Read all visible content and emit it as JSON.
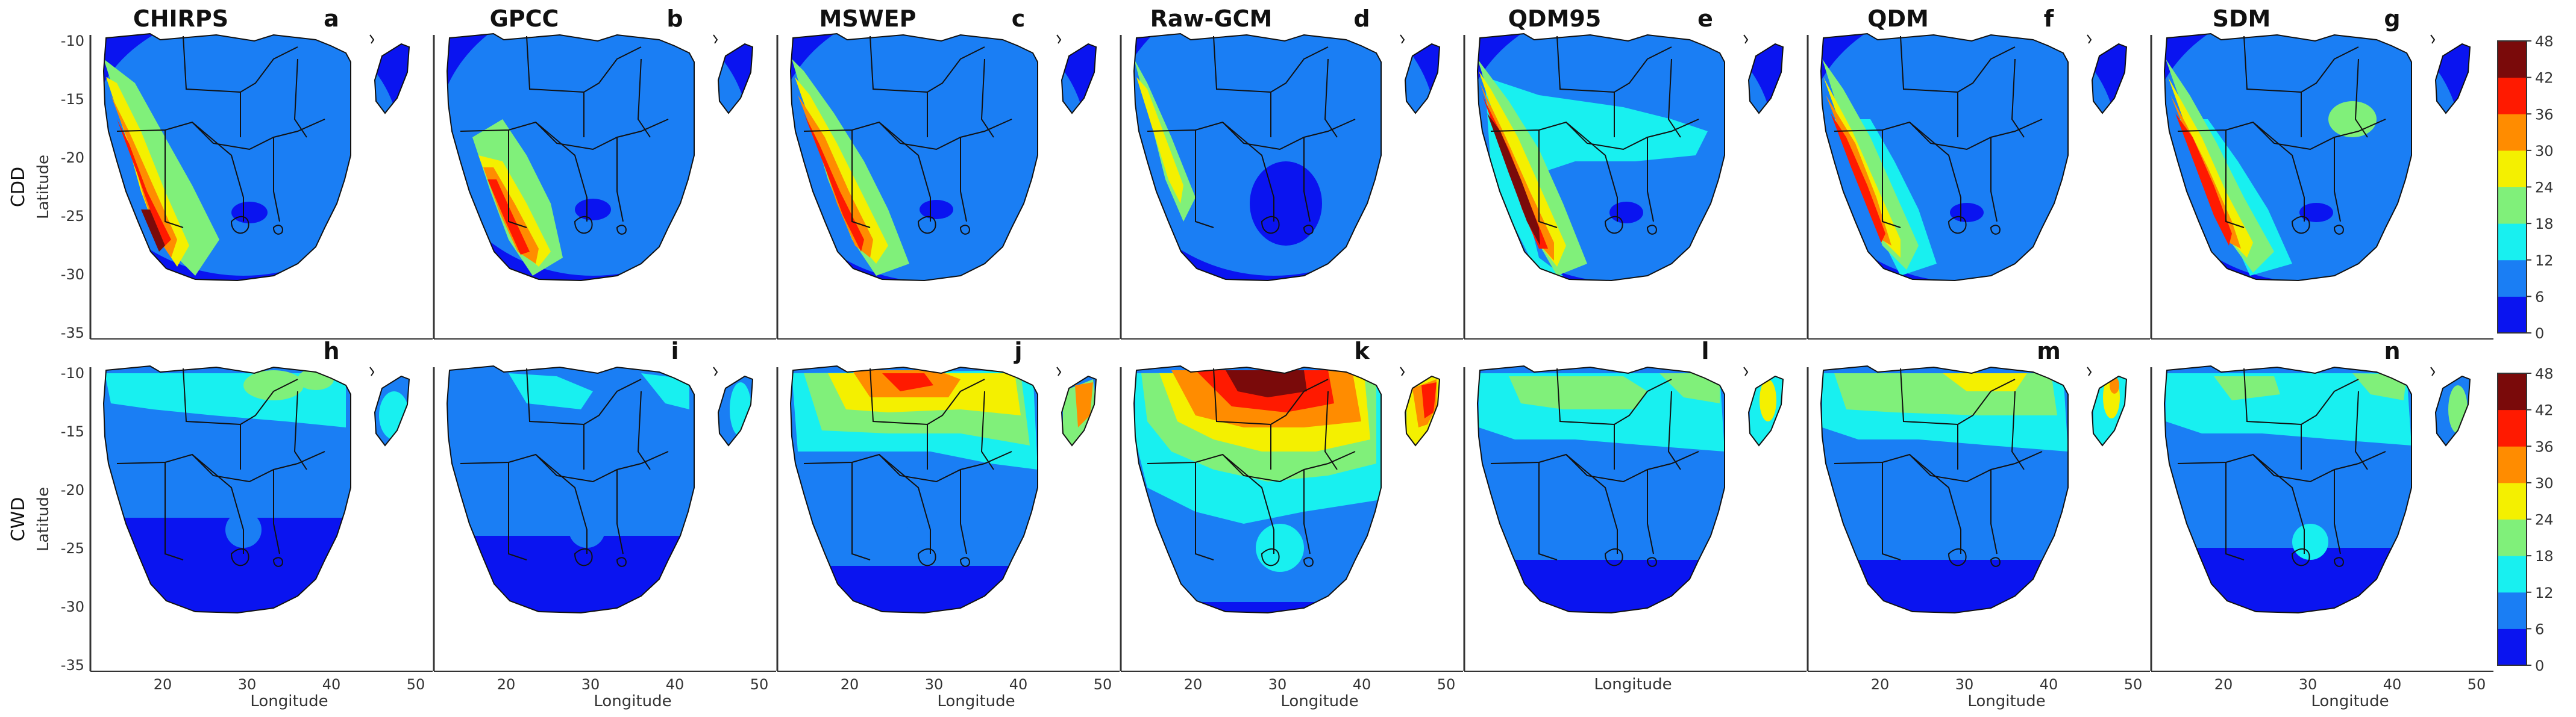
{
  "colors": {
    "levels": [
      "#0a14f0",
      "#1a7ef4",
      "#18f0f0",
      "#80f07a",
      "#f4f000",
      "#ff8c00",
      "#ff1a00",
      "#7a0a0a"
    ],
    "land_fill": "#0a14f0",
    "frame": "#333333"
  },
  "rows": [
    {
      "label": "CDD",
      "ylabel": "Latitude",
      "panels": [
        {
          "title": "CHIRPS",
          "letter": "a"
        },
        {
          "title": "GPCC",
          "letter": "b"
        },
        {
          "title": "MSWEP",
          "letter": "c"
        },
        {
          "title": "Raw-GCM",
          "letter": "d"
        },
        {
          "title": "QDM95",
          "letter": "e"
        },
        {
          "title": "QDM",
          "letter": "f"
        },
        {
          "title": "SDM",
          "letter": "g"
        }
      ]
    },
    {
      "label": "CWD",
      "ylabel": "Latitude",
      "panels": [
        {
          "title": "",
          "letter": "h"
        },
        {
          "title": "",
          "letter": "i"
        },
        {
          "title": "",
          "letter": "j"
        },
        {
          "title": "",
          "letter": "k"
        },
        {
          "title": "",
          "letter": "l"
        },
        {
          "title": "",
          "letter": "m"
        },
        {
          "title": "",
          "letter": "n"
        }
      ]
    }
  ],
  "yticks": [
    "-10",
    "-15",
    "-20",
    "-25",
    "-30",
    "-35"
  ],
  "xticks": [
    "20",
    "30",
    "40",
    "50"
  ],
  "xlabel": "Longitude",
  "colorbar_ticks": [
    "48",
    "42",
    "36",
    "30",
    "24",
    "18",
    "12",
    "6",
    "0"
  ],
  "extent": {
    "lon": [
      11,
      51
    ],
    "lat": [
      -35,
      -10
    ]
  },
  "x_axis_panels": {
    "row": 1,
    "panels": [
      0,
      1,
      2,
      3,
      5,
      6
    ],
    "center_label_panel": 4
  }
}
